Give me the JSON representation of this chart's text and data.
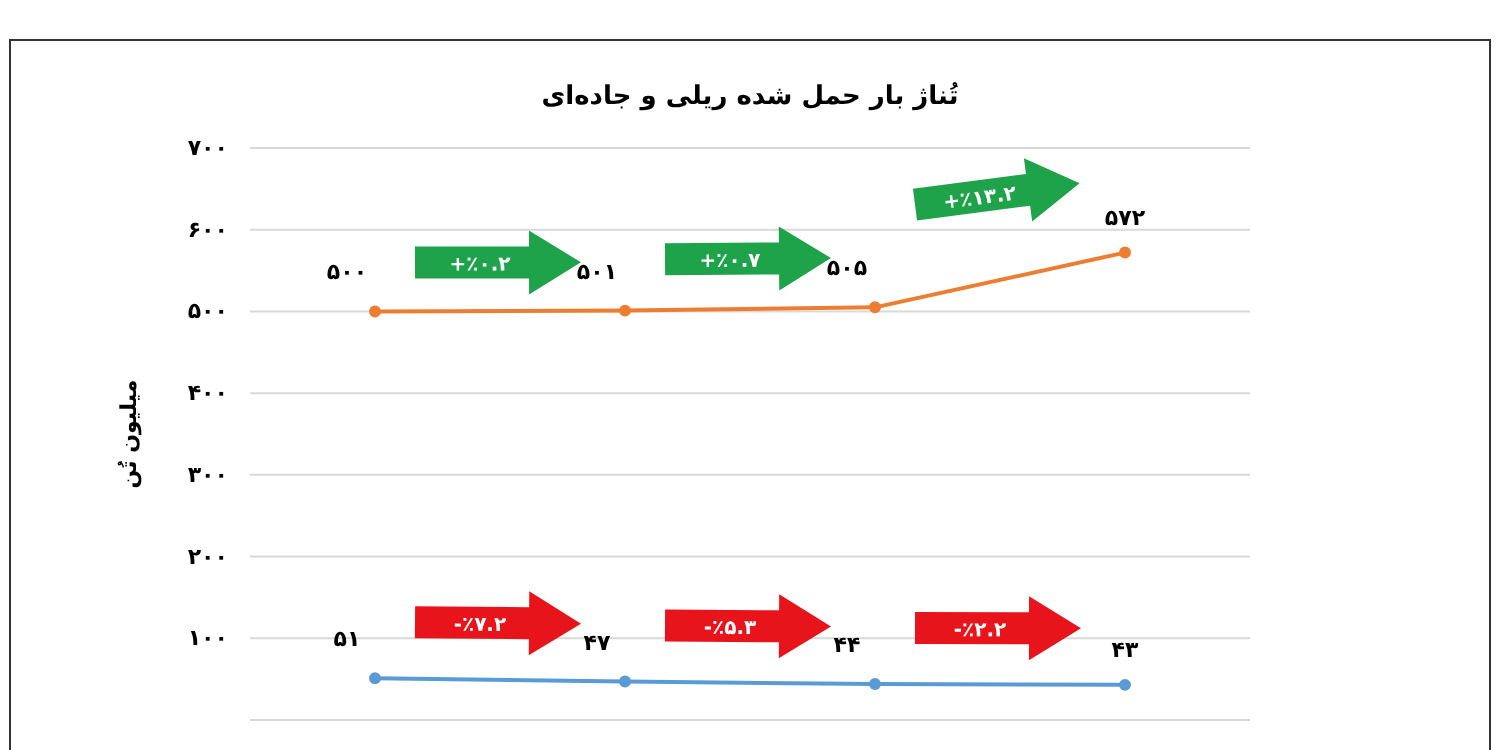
{
  "chart_data": {
    "type": "line",
    "title": "تُناژ بار حمل شده ریلی و جاده‌ای",
    "ylabel": "میلیون تُن",
    "categories": [
      null,
      null,
      null,
      null
    ],
    "series": [
      {
        "color": "#ed7d31",
        "values": [
          500,
          501,
          505,
          572
        ],
        "value_labels": [
          "۵۰۰",
          "۵۰۱",
          "۵۰۵",
          "۵۷۲"
        ]
      },
      {
        "color": "#5b9bd5",
        "values": [
          51,
          47,
          44,
          43
        ],
        "value_labels": [
          "۵۱",
          "۴۷",
          "۴۴",
          "۴۳"
        ]
      }
    ],
    "ylim": [
      0,
      700
    ],
    "yticks": [
      {
        "value": 0,
        "label": null
      },
      {
        "value": 100,
        "label": "۱۰۰"
      },
      {
        "value": 200,
        "label": "۲۰۰"
      },
      {
        "value": 300,
        "label": "۳۰۰"
      },
      {
        "value": 400,
        "label": "۴۰۰"
      },
      {
        "value": 500,
        "label": "۵۰۰"
      },
      {
        "value": 600,
        "label": "۶۰۰"
      },
      {
        "value": 700,
        "label": "۷۰۰"
      }
    ],
    "grid": "y",
    "marker": "circle",
    "line_style": "solid",
    "tick_labels": "y",
    "annotations": [
      "+٪۰.۲",
      "+٪۰.۷",
      "+٪۱۳.۲",
      "-٪۷.۲",
      "-٪۵.۳",
      "-٪۲.۲"
    ]
  }
}
